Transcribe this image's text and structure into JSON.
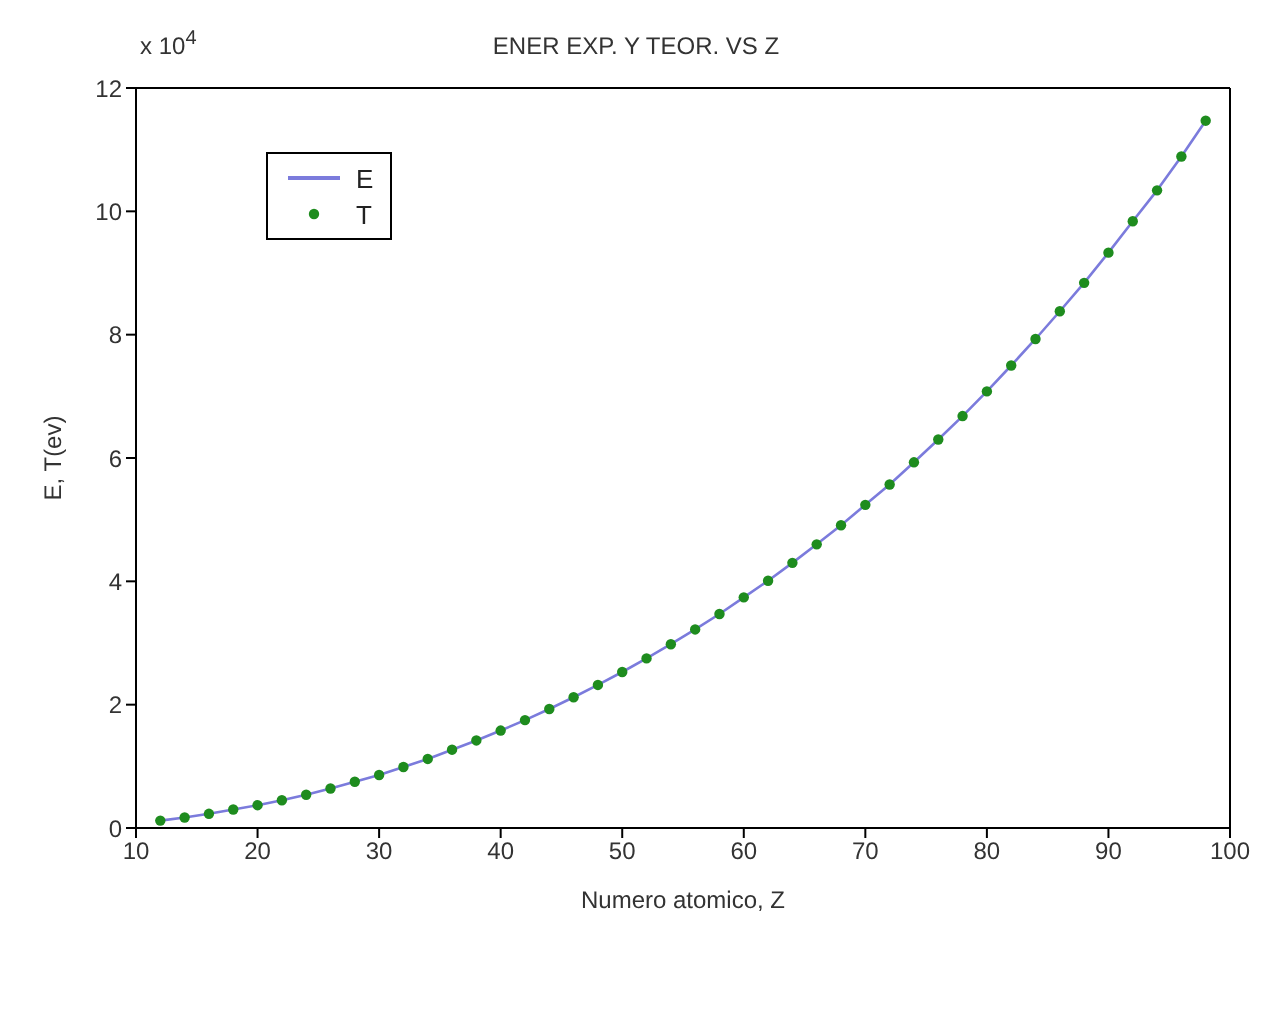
{
  "chart_data": {
    "type": "line",
    "title": "ENER EXP. Y TEOR. VS Z",
    "xlabel": "Numero atomico, Z",
    "ylabel": "E, T(ev)",
    "annotations": [
      "x 10$^{4}$"
    ],
    "x": [
      12,
      14,
      16,
      18,
      20,
      22,
      24,
      26,
      28,
      30,
      32,
      34,
      36,
      38,
      40,
      42,
      44,
      46,
      48,
      50,
      52,
      54,
      56,
      58,
      60,
      62,
      64,
      66,
      68,
      70,
      72,
      74,
      76,
      78,
      80,
      82,
      84,
      86,
      88,
      90,
      92,
      94,
      96,
      98
    ],
    "series": [
      {
        "name": "E",
        "color": "#7b7bdc",
        "marker": "none",
        "values": [
          0.12,
          0.17,
          0.23,
          0.3,
          0.37,
          0.45,
          0.54,
          0.64,
          0.75,
          0.86,
          0.99,
          1.12,
          1.27,
          1.42,
          1.58,
          1.75,
          1.93,
          2.12,
          2.32,
          2.53,
          2.75,
          2.98,
          3.22,
          3.47,
          3.74,
          4.01,
          4.3,
          4.6,
          4.91,
          5.24,
          5.57,
          5.93,
          6.3,
          6.68,
          7.08,
          7.5,
          7.93,
          8.38,
          8.84,
          9.33,
          9.84,
          10.34,
          10.89,
          11.47
        ]
      },
      {
        "name": "T",
        "type": "scatter",
        "color": "#1e8c1e",
        "marker": "circle",
        "values": [
          0.12,
          0.17,
          0.23,
          0.3,
          0.37,
          0.45,
          0.54,
          0.64,
          0.75,
          0.86,
          0.99,
          1.12,
          1.27,
          1.42,
          1.58,
          1.75,
          1.93,
          2.12,
          2.32,
          2.53,
          2.75,
          2.98,
          3.22,
          3.47,
          3.74,
          4.01,
          4.3,
          4.6,
          4.91,
          5.24,
          5.57,
          5.93,
          6.3,
          6.68,
          7.08,
          7.5,
          7.93,
          8.38,
          8.84,
          9.33,
          9.84,
          10.34,
          10.89,
          11.47
        ]
      }
    ],
    "xlim": [
      10,
      100
    ],
    "xticks": [
      10,
      20,
      30,
      40,
      50,
      60,
      70,
      80,
      90,
      100
    ],
    "ylim": [
      0,
      12
    ],
    "yticks": [
      0,
      2,
      4,
      6,
      8,
      10,
      12
    ],
    "grid": false,
    "legend": "top left"
  }
}
